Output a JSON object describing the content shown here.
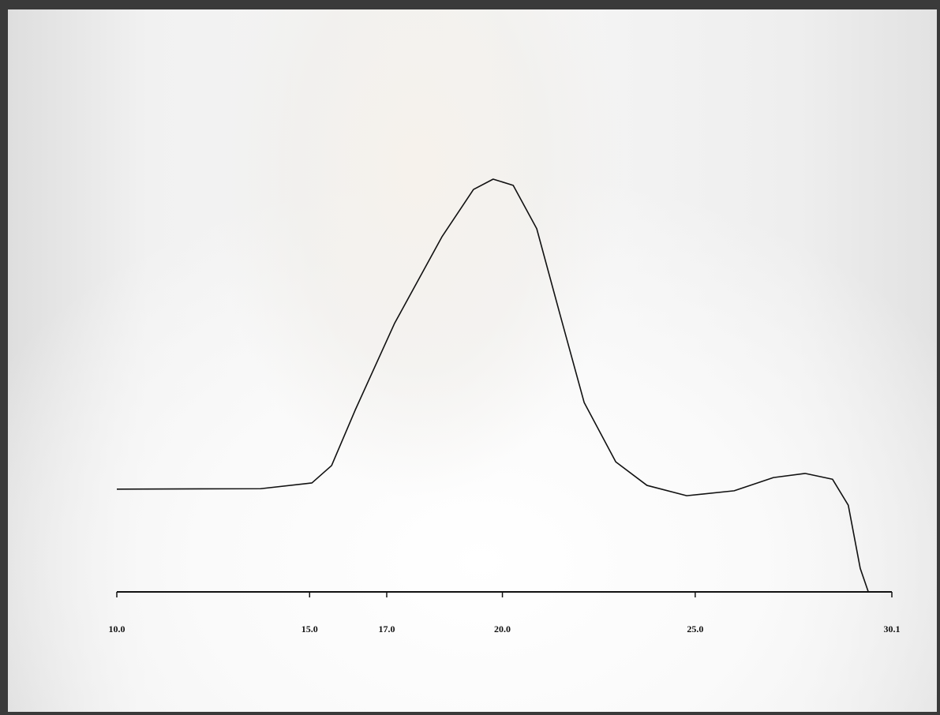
{
  "chart_data": {
    "type": "line",
    "x": [
      10.0,
      13.73,
      15.06,
      15.57,
      16.18,
      17.2,
      18.43,
      19.25,
      19.76,
      20.28,
      20.89,
      21.5,
      22.12,
      22.94,
      23.75,
      24.78,
      26.01,
      27.03,
      27.85,
      28.56,
      28.97,
      29.28,
      29.49
    ],
    "series": [
      {
        "color": "#111111",
        "values": [
          24.9,
          25.0,
          26.4,
          30.6,
          44.0,
          65.0,
          86.0,
          97.5,
          100.0,
          98.5,
          88.0,
          67.0,
          45.9,
          31.5,
          25.8,
          23.3,
          24.5,
          27.7,
          28.7,
          27.3,
          21.0,
          5.7,
          0
        ]
      }
    ],
    "xlim": [
      10.0,
      30.1
    ],
    "xticks": [
      {
        "value": 10,
        "label": "10.0"
      },
      {
        "value": 15,
        "label": "15.0"
      },
      {
        "value": 17,
        "label": "17.0"
      },
      {
        "value": 20,
        "label": "20.0"
      },
      {
        "value": 25,
        "label": "25.0"
      },
      30.1
    ],
    "ylim": [
      0,
      100
    ]
  }
}
